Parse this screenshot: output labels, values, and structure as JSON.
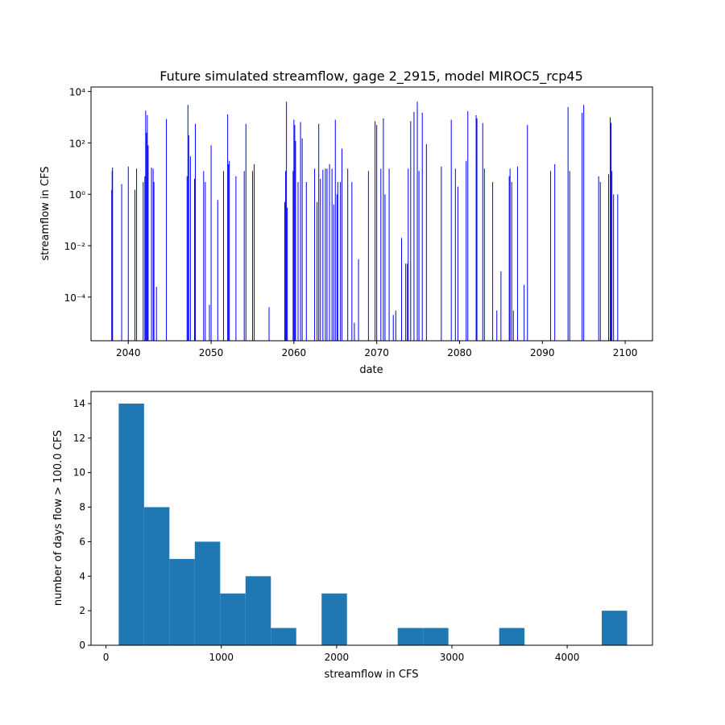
{
  "chart_data": [
    {
      "type": "line",
      "title": "Future simulated streamflow, gage 2_2915, model MIROC5_rcp45",
      "xlabel": "date",
      "ylabel": "streamflow in CFS",
      "yscale": "log",
      "xlim": [
        2035.5,
        2103.3
      ],
      "ylim": [
        2e-06,
        15000
      ],
      "xticks": [
        2040,
        2050,
        2060,
        2070,
        2080,
        2090,
        2100
      ],
      "xtick_labels": [
        "2040",
        "2050",
        "2060",
        "2070",
        "2080",
        "2090",
        "2100"
      ],
      "yticks": [
        0.0001,
        0.01,
        1,
        100,
        10000
      ],
      "ytick_labels": [
        "10⁻⁴",
        "10⁻²",
        "10⁰",
        "10²",
        "10⁴"
      ],
      "line_color": "#0000ff",
      "grid": false,
      "series": [
        {
          "peaks": [
            [
              2038.0,
              1.5
            ],
            [
              2038.05,
              8
            ],
            [
              2038.1,
              11
            ],
            [
              2039.2,
              2.5
            ],
            [
              2040.0,
              12
            ],
            [
              2040.8,
              1.5
            ],
            [
              2041.0,
              10
            ],
            [
              2041.8,
              3
            ],
            [
              2042.0,
              5
            ],
            [
              2042.1,
              1800
            ],
            [
              2042.2,
              250
            ],
            [
              2042.3,
              1200
            ],
            [
              2042.4,
              80
            ],
            [
              2042.8,
              11
            ],
            [
              2043.0,
              10
            ],
            [
              2043.1,
              3
            ],
            [
              2043.4,
              0.00025
            ],
            [
              2044.6,
              850
            ],
            [
              2047.1,
              5
            ],
            [
              2047.2,
              3000
            ],
            [
              2047.3,
              200
            ],
            [
              2047.5,
              30
            ],
            [
              2048.0,
              4
            ],
            [
              2048.1,
              550
            ],
            [
              2049.1,
              8
            ],
            [
              2049.3,
              3
            ],
            [
              2049.8,
              5e-05
            ],
            [
              2050.0,
              80
            ],
            [
              2050.8,
              0.6
            ],
            [
              2051.5,
              8
            ],
            [
              2052.0,
              1300
            ],
            [
              2052.1,
              15
            ],
            [
              2052.2,
              20
            ],
            [
              2053.0,
              5
            ],
            [
              2054.0,
              8
            ],
            [
              2054.2,
              550
            ],
            [
              2055.0,
              8
            ],
            [
              2055.2,
              15
            ],
            [
              2057.0,
              4e-05
            ],
            [
              2058.9,
              0.5
            ],
            [
              2059.0,
              8
            ],
            [
              2059.1,
              4000
            ],
            [
              2059.2,
              0.3
            ],
            [
              2059.9,
              8
            ],
            [
              2060.0,
              800
            ],
            [
              2060.1,
              500
            ],
            [
              2060.2,
              120
            ],
            [
              2060.5,
              3
            ],
            [
              2060.8,
              650
            ],
            [
              2061.0,
              150
            ],
            [
              2061.5,
              3
            ],
            [
              2062.5,
              10
            ],
            [
              2062.8,
              0.5
            ],
            [
              2063.0,
              550
            ],
            [
              2063.2,
              4
            ],
            [
              2063.5,
              9
            ],
            [
              2063.8,
              10
            ],
            [
              2064.0,
              10
            ],
            [
              2064.3,
              15
            ],
            [
              2064.6,
              10
            ],
            [
              2064.8,
              0.4
            ],
            [
              2065.0,
              800
            ],
            [
              2065.2,
              1
            ],
            [
              2065.3,
              3
            ],
            [
              2065.6,
              3
            ],
            [
              2065.8,
              60
            ],
            [
              2066.5,
              10
            ],
            [
              2067.0,
              3
            ],
            [
              2067.3,
              1e-05
            ],
            [
              2067.8,
              0.003
            ],
            [
              2069.0,
              8
            ],
            [
              2069.8,
              700
            ],
            [
              2070.0,
              500
            ],
            [
              2070.5,
              10
            ],
            [
              2070.8,
              900
            ],
            [
              2071.0,
              1
            ],
            [
              2071.5,
              10
            ],
            [
              2072.0,
              2e-05
            ],
            [
              2072.3,
              3e-05
            ],
            [
              2073.0,
              0.02
            ],
            [
              2073.5,
              0.002
            ],
            [
              2073.7,
              0.002
            ],
            [
              2073.8,
              10
            ],
            [
              2074.1,
              700
            ],
            [
              2074.5,
              1600
            ],
            [
              2074.9,
              4000
            ],
            [
              2075.1,
              8
            ],
            [
              2075.5,
              1500
            ],
            [
              2076.0,
              90
            ],
            [
              2077.8,
              12
            ],
            [
              2079.0,
              800
            ],
            [
              2079.5,
              10
            ],
            [
              2079.8,
              2
            ],
            [
              2080.8,
              20
            ],
            [
              2081.0,
              1700
            ],
            [
              2082.0,
              1200
            ],
            [
              2082.1,
              900
            ],
            [
              2082.8,
              600
            ],
            [
              2083.0,
              10
            ],
            [
              2084.0,
              3
            ],
            [
              2084.5,
              3e-05
            ],
            [
              2085.0,
              0.001
            ],
            [
              2086.0,
              5
            ],
            [
              2086.1,
              10
            ],
            [
              2086.3,
              3
            ],
            [
              2086.5,
              3e-05
            ],
            [
              2087.0,
              12
            ],
            [
              2087.8,
              0.0003
            ],
            [
              2088.2,
              500
            ],
            [
              2091.0,
              8
            ],
            [
              2091.5,
              15
            ],
            [
              2093.1,
              2500
            ],
            [
              2093.3,
              8
            ],
            [
              2094.8,
              1500
            ],
            [
              2095.0,
              3000
            ],
            [
              2096.8,
              5
            ],
            [
              2097.0,
              3
            ],
            [
              2098.0,
              6
            ],
            [
              2098.2,
              1000
            ],
            [
              2098.3,
              600
            ],
            [
              2098.4,
              8
            ],
            [
              2098.6,
              1
            ],
            [
              2099.1,
              1
            ]
          ]
        }
      ]
    },
    {
      "type": "bar",
      "subtype": "histogram",
      "title": "",
      "xlabel": "streamflow in CFS",
      "ylabel": "number of days flow > 100.0 CFS",
      "xlim": [
        -130,
        4740
      ],
      "ylim": [
        0,
        14.7
      ],
      "xticks": [
        0,
        1000,
        2000,
        3000,
        4000
      ],
      "xtick_labels": [
        "0",
        "1000",
        "2000",
        "3000",
        "4000"
      ],
      "yticks": [
        0,
        2,
        4,
        6,
        8,
        10,
        12,
        14
      ],
      "ytick_labels": [
        "0",
        "2",
        "4",
        "6",
        "8",
        "10",
        "12",
        "14"
      ],
      "bar_color": "#1f77b4",
      "grid": false,
      "bins": [
        [
          110,
          330
        ],
        [
          330,
          550
        ],
        [
          550,
          770
        ],
        [
          770,
          990
        ],
        [
          990,
          1210
        ],
        [
          1210,
          1430
        ],
        [
          1430,
          1650
        ],
        [
          1870,
          2090
        ],
        [
          2530,
          2750
        ],
        [
          2750,
          2970
        ],
        [
          3410,
          3630
        ],
        [
          4300,
          4520
        ]
      ],
      "values": [
        14,
        8,
        5,
        6,
        3,
        4,
        1,
        3,
        1,
        1,
        1,
        2
      ]
    }
  ]
}
